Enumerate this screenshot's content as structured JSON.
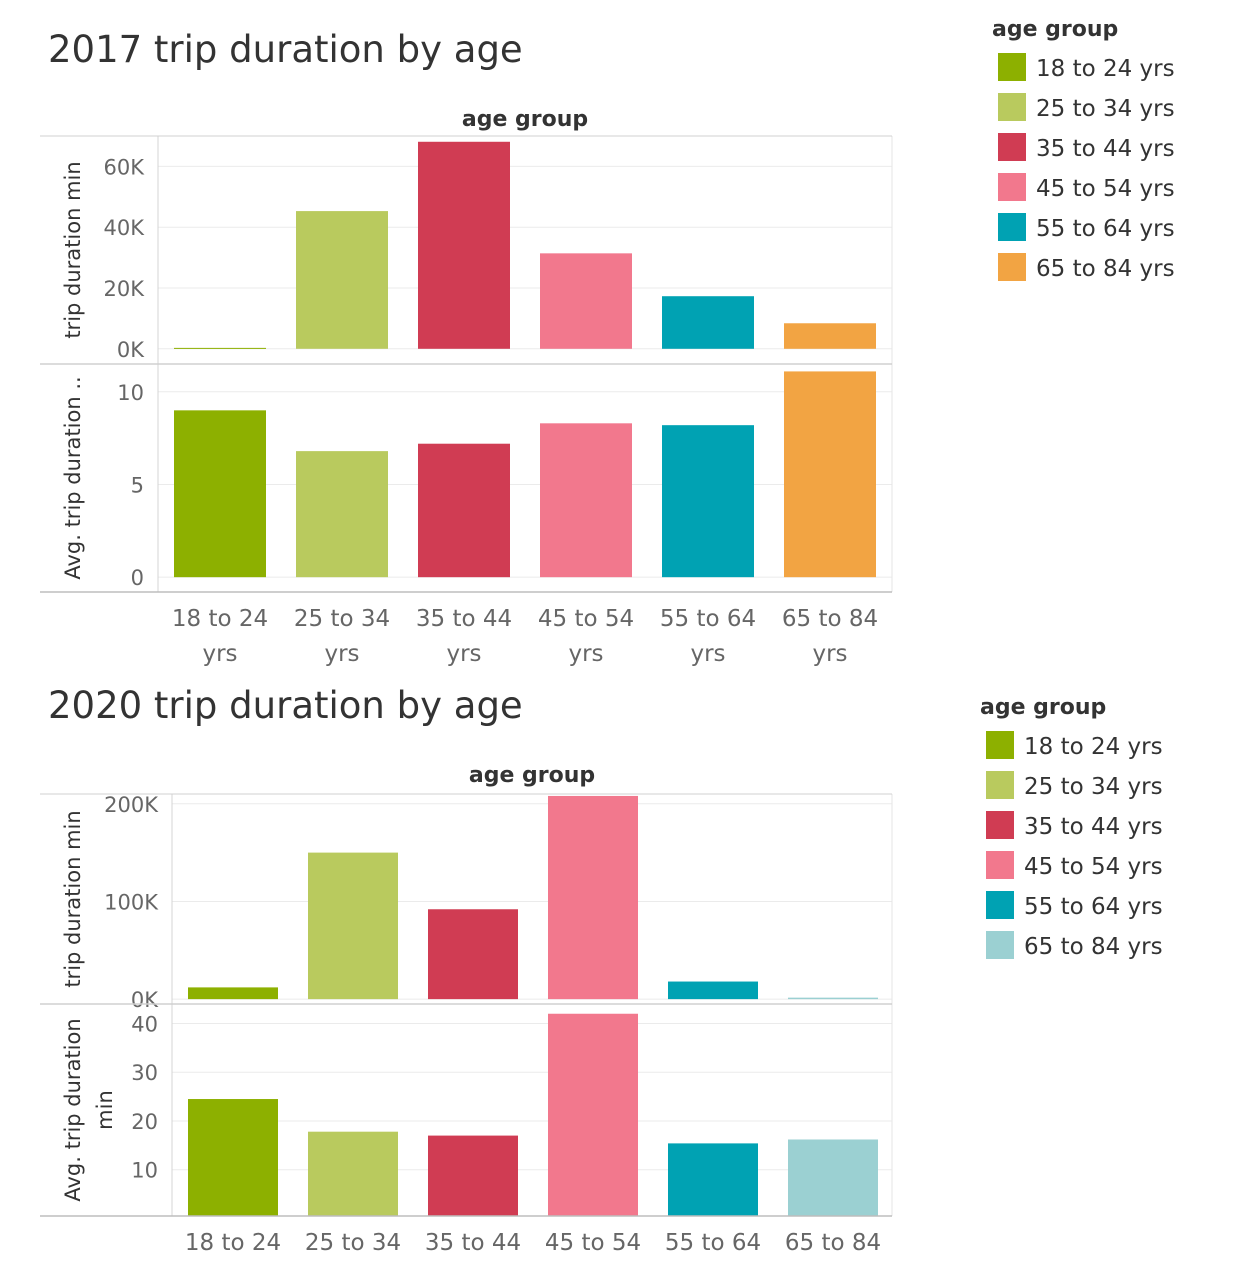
{
  "chart_data": [
    {
      "type": "bar",
      "title": "2017 trip duration by age",
      "header": "age group",
      "categories": [
        "18 to 24 yrs",
        "25 to 34 yrs",
        "35 to 44 yrs",
        "45 to 54 yrs",
        "55 to 64 yrs",
        "65 to 84 yrs"
      ],
      "category_lines": [
        [
          "18 to 24",
          "yrs"
        ],
        [
          "25 to 34",
          "yrs"
        ],
        [
          "35 to 44",
          "yrs"
        ],
        [
          "45 to 54",
          "yrs"
        ],
        [
          "55 to 64",
          "yrs"
        ],
        [
          "65 to 84",
          "yrs"
        ]
      ],
      "colors": [
        "#8db000",
        "#b9ca5e",
        "#d03c53",
        "#f2788d",
        "#00a2b3",
        "#f2a443"
      ],
      "panels": [
        {
          "ylabel_lines": [
            "trip duration min"
          ],
          "ylim": [
            -5000,
            70000
          ],
          "ticks": [
            0,
            20000,
            40000,
            60000
          ],
          "tick_labels": [
            "0K",
            "20K",
            "40K",
            "60K"
          ],
          "values": [
            300,
            45300,
            68100,
            31400,
            17300,
            8400
          ]
        },
        {
          "ylabel_lines": [
            "Avg. trip duration .."
          ],
          "ylim": [
            -0.8,
            11.5
          ],
          "ticks": [
            0,
            5,
            10
          ],
          "tick_labels": [
            "0",
            "5",
            "10"
          ],
          "values": [
            9.0,
            6.8,
            7.2,
            8.3,
            8.2,
            11.1
          ]
        }
      ],
      "legend": {
        "title": "age group",
        "items": [
          "18 to 24 yrs",
          "25 to 34 yrs",
          "35 to 44 yrs",
          "45 to 54 yrs",
          "55 to 64 yrs",
          "65 to 84 yrs"
        ],
        "colors": [
          "#8db000",
          "#b9ca5e",
          "#d03c53",
          "#f2788d",
          "#00a2b3",
          "#f2a443"
        ]
      }
    },
    {
      "type": "bar",
      "title": "2020 trip duration by age",
      "header": "age group",
      "categories": [
        "18 to 24",
        "25 to 34",
        "35 to 44",
        "45 to 54",
        "55 to 64",
        "65 to 84"
      ],
      "category_lines": [
        [
          "18 to 24"
        ],
        [
          "25 to 34"
        ],
        [
          "35 to 44"
        ],
        [
          "45 to 54"
        ],
        [
          "55 to 64"
        ],
        [
          "65 to 84"
        ]
      ],
      "colors": [
        "#8db000",
        "#b9ca5e",
        "#d03c53",
        "#f2788d",
        "#00a2b3",
        "#9bd0d2"
      ],
      "panels": [
        {
          "ylabel_lines": [
            "trip duration min"
          ],
          "ylim": [
            -5000,
            210000
          ],
          "ticks": [
            0,
            100000,
            200000
          ],
          "tick_labels": [
            "0K",
            "100K",
            "200K"
          ],
          "values": [
            12000,
            150000,
            92000,
            208000,
            18000,
            1500
          ]
        },
        {
          "ylabel_lines": [
            "Avg. trip duration",
            "min"
          ],
          "ylim": [
            0.5,
            44
          ],
          "ticks": [
            10,
            20,
            30,
            40
          ],
          "tick_labels": [
            "10",
            "20",
            "30",
            "40"
          ],
          "values": [
            24.5,
            17.8,
            17.0,
            42.0,
            15.4,
            16.2
          ]
        }
      ],
      "legend": {
        "title": "age group",
        "items": [
          "18 to 24 yrs",
          "25 to 34 yrs",
          "35 to 44 yrs",
          "45 to 54 yrs",
          "55 to 64 yrs",
          "65 to 84 yrs"
        ],
        "colors": [
          "#8db000",
          "#b9ca5e",
          "#d03c53",
          "#f2788d",
          "#00a2b3",
          "#9bd0d2"
        ]
      }
    }
  ]
}
